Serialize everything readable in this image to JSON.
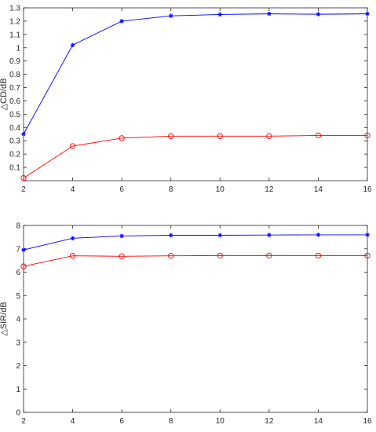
{
  "chart_data": [
    {
      "type": "line",
      "ylabel": "△CD/dB",
      "xlabel": "",
      "title": "",
      "xlim": [
        2,
        16
      ],
      "ylim": [
        0,
        1.3
      ],
      "xticks": [
        "2",
        "4",
        "6",
        "8",
        "10",
        "12",
        "14",
        "16"
      ],
      "yticks": [
        "0.1",
        "0.2",
        "0.3",
        "0.4",
        "0.5",
        "0.6",
        "0.7",
        "0.8",
        "0.9",
        "1",
        "1.1",
        "1.2",
        "1.3"
      ],
      "grid": false,
      "x": [
        2,
        4,
        6,
        8,
        10,
        12,
        14,
        16
      ],
      "series": [
        {
          "color": "#0000ff",
          "marker": "asterisk",
          "values": [
            0.35,
            1.02,
            1.2,
            1.24,
            1.25,
            1.255,
            1.252,
            1.255
          ]
        },
        {
          "color": "#ff0000",
          "marker": "circle",
          "values": [
            0.02,
            0.26,
            0.32,
            0.335,
            0.335,
            0.335,
            0.34,
            0.34
          ]
        }
      ]
    },
    {
      "type": "line",
      "ylabel": "△SIR/dB",
      "xlabel": "",
      "title": "",
      "xlim": [
        2,
        16
      ],
      "ylim": [
        0,
        8
      ],
      "xticks": [
        "2",
        "4",
        "6",
        "8",
        "10",
        "12",
        "14",
        "16"
      ],
      "yticks": [
        "0",
        "1",
        "2",
        "3",
        "4",
        "5",
        "6",
        "7",
        "8"
      ],
      "grid": false,
      "x": [
        2,
        4,
        6,
        8,
        10,
        12,
        14,
        16
      ],
      "series": [
        {
          "color": "#0000ff",
          "marker": "asterisk",
          "values": [
            6.95,
            7.45,
            7.55,
            7.58,
            7.58,
            7.59,
            7.6,
            7.6
          ]
        },
        {
          "color": "#ff0000",
          "marker": "circle",
          "values": [
            6.25,
            6.7,
            6.68,
            6.7,
            6.71,
            6.71,
            6.71,
            6.71
          ]
        }
      ]
    }
  ]
}
